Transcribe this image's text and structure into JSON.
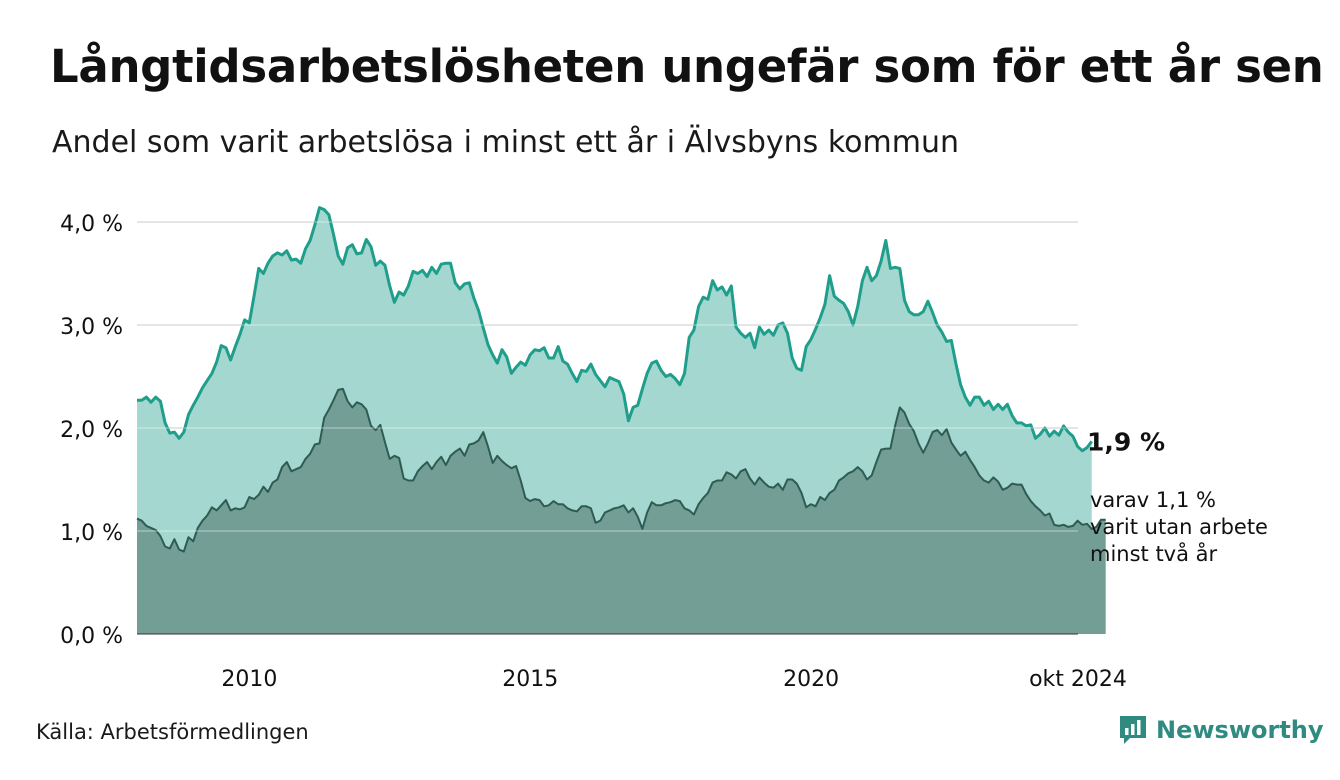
{
  "title": "Långtidsarbetslösheten ungefär som för ett år sen",
  "subtitle": "Andel som varit arbetslösa i minst ett år i Älvsbyns kommun",
  "source": "Källa: Arbetsförmedlingen",
  "brand": {
    "name": "Newsworthy",
    "icon": "newsworthy-logo-icon"
  },
  "colors": {
    "series1_line": "#1f9e8c",
    "series1_fill": "#a4d7cf",
    "series2_line": "#2e5c52",
    "series2_fill": "#739e95",
    "grid": "#dddddd",
    "brand": "#2f8b80"
  },
  "chart_data": {
    "type": "area",
    "title": "Långtidsarbetslösheten ungefär som för ett år sen",
    "subtitle": "Andel som varit arbetslösa i minst ett år i Älvsbyns kommun",
    "xlabel": "",
    "ylabel": "",
    "x_start": 2008.0,
    "x_step": 0.0833,
    "x_range": [
      2008.0,
      2024.75
    ],
    "x_ticks": [
      {
        "value": 2010,
        "label": "2010"
      },
      {
        "value": 2015,
        "label": "2015"
      },
      {
        "value": 2020,
        "label": "2020"
      },
      {
        "value": 2024.75,
        "label": "okt 2024"
      }
    ],
    "ylim": [
      0,
      4.2
    ],
    "y_ticks": [
      {
        "value": 0,
        "label": "0,0 %"
      },
      {
        "value": 1,
        "label": "1,0 %"
      },
      {
        "value": 2,
        "label": "2,0 %"
      },
      {
        "value": 3,
        "label": "3,0 %"
      },
      {
        "value": 4,
        "label": "4,0 %"
      }
    ],
    "grid": true,
    "series": [
      {
        "name": "Arbetslösa minst ett år",
        "values": [
          2.27,
          2.27,
          2.3,
          2.25,
          2.3,
          2.26,
          2.05,
          1.95,
          1.96,
          1.9,
          1.96,
          2.13,
          2.22,
          2.3,
          2.39,
          2.46,
          2.53,
          2.64,
          2.8,
          2.78,
          2.66,
          2.79,
          2.91,
          3.05,
          3.02,
          3.28,
          3.55,
          3.5,
          3.6,
          3.67,
          3.7,
          3.68,
          3.72,
          3.63,
          3.64,
          3.6,
          3.74,
          3.82,
          3.97,
          4.14,
          4.12,
          4.07,
          3.88,
          3.67,
          3.59,
          3.75,
          3.78,
          3.69,
          3.7,
          3.83,
          3.76,
          3.58,
          3.62,
          3.58,
          3.38,
          3.22,
          3.32,
          3.29,
          3.38,
          3.52,
          3.5,
          3.53,
          3.47,
          3.56,
          3.5,
          3.59,
          3.6,
          3.6,
          3.41,
          3.35,
          3.4,
          3.41,
          3.26,
          3.14,
          2.97,
          2.81,
          2.71,
          2.63,
          2.76,
          2.69,
          2.53,
          2.59,
          2.64,
          2.61,
          2.71,
          2.76,
          2.75,
          2.78,
          2.68,
          2.68,
          2.79,
          2.65,
          2.62,
          2.53,
          2.45,
          2.56,
          2.55,
          2.62,
          2.52,
          2.46,
          2.4,
          2.49,
          2.47,
          2.45,
          2.33,
          2.07,
          2.2,
          2.22,
          2.38,
          2.53,
          2.63,
          2.65,
          2.56,
          2.5,
          2.52,
          2.48,
          2.42,
          2.53,
          2.88,
          2.95,
          3.18,
          3.27,
          3.25,
          3.43,
          3.34,
          3.37,
          3.29,
          3.38,
          2.98,
          2.92,
          2.88,
          2.92,
          2.78,
          2.98,
          2.91,
          2.95,
          2.9,
          3.0,
          3.02,
          2.92,
          2.68,
          2.58,
          2.56,
          2.79,
          2.86,
          2.96,
          3.07,
          3.2,
          3.48,
          3.28,
          3.24,
          3.21,
          3.13,
          3.0,
          3.18,
          3.43,
          3.56,
          3.43,
          3.48,
          3.62,
          3.82,
          3.55,
          3.56,
          3.55,
          3.24,
          3.13,
          3.1,
          3.1,
          3.13,
          3.23,
          3.12,
          3.0,
          2.93,
          2.84,
          2.85,
          2.62,
          2.42,
          2.3,
          2.22,
          2.3,
          2.3,
          2.22,
          2.26,
          2.18,
          2.23,
          2.18,
          2.23,
          2.12,
          2.05,
          2.05,
          2.02,
          2.03,
          1.9,
          1.94,
          2.0,
          1.92,
          1.97,
          1.93,
          2.02,
          1.96,
          1.92,
          1.82,
          1.78,
          1.81,
          1.87
        ]
      },
      {
        "name": "varav utan arbete minst två år",
        "values": [
          1.12,
          1.1,
          1.05,
          1.03,
          1.01,
          0.95,
          0.85,
          0.83,
          0.92,
          0.82,
          0.8,
          0.94,
          0.9,
          1.03,
          1.1,
          1.15,
          1.23,
          1.2,
          1.25,
          1.3,
          1.2,
          1.22,
          1.21,
          1.23,
          1.33,
          1.31,
          1.35,
          1.43,
          1.38,
          1.47,
          1.5,
          1.62,
          1.67,
          1.58,
          1.6,
          1.62,
          1.7,
          1.75,
          1.84,
          1.85,
          2.1,
          2.18,
          2.27,
          2.37,
          2.38,
          2.26,
          2.2,
          2.25,
          2.23,
          2.18,
          2.02,
          1.98,
          2.03,
          1.86,
          1.7,
          1.73,
          1.71,
          1.51,
          1.49,
          1.49,
          1.58,
          1.63,
          1.67,
          1.6,
          1.67,
          1.72,
          1.64,
          1.73,
          1.77,
          1.8,
          1.73,
          1.84,
          1.85,
          1.88,
          1.96,
          1.82,
          1.66,
          1.73,
          1.68,
          1.64,
          1.61,
          1.63,
          1.49,
          1.32,
          1.29,
          1.31,
          1.3,
          1.24,
          1.25,
          1.29,
          1.26,
          1.26,
          1.22,
          1.2,
          1.19,
          1.24,
          1.24,
          1.22,
          1.08,
          1.1,
          1.18,
          1.2,
          1.22,
          1.23,
          1.25,
          1.18,
          1.22,
          1.14,
          1.02,
          1.18,
          1.28,
          1.25,
          1.25,
          1.27,
          1.28,
          1.3,
          1.29,
          1.22,
          1.2,
          1.16,
          1.26,
          1.32,
          1.37,
          1.47,
          1.49,
          1.49,
          1.57,
          1.55,
          1.51,
          1.58,
          1.6,
          1.51,
          1.45,
          1.52,
          1.47,
          1.43,
          1.42,
          1.46,
          1.4,
          1.5,
          1.5,
          1.46,
          1.37,
          1.23,
          1.26,
          1.24,
          1.33,
          1.3,
          1.37,
          1.4,
          1.49,
          1.52,
          1.56,
          1.58,
          1.62,
          1.58,
          1.5,
          1.54,
          1.67,
          1.79,
          1.8,
          1.8,
          2.02,
          2.2,
          2.15,
          2.04,
          1.97,
          1.85,
          1.76,
          1.85,
          1.96,
          1.98,
          1.93,
          1.99,
          1.86,
          1.79,
          1.73,
          1.77,
          1.69,
          1.62,
          1.54,
          1.49,
          1.47,
          1.52,
          1.48,
          1.4,
          1.42,
          1.46,
          1.45,
          1.45,
          1.36,
          1.29,
          1.24,
          1.2,
          1.15,
          1.17,
          1.06,
          1.05,
          1.06,
          1.04,
          1.05,
          1.1,
          1.06,
          1.07,
          1.02,
          1.04,
          1.11,
          1.11
        ]
      }
    ],
    "annotations": {
      "last_value": "1,9 %",
      "secondary_lines": [
        "varav 1,1 %",
        "varit utan arbete",
        "minst två år"
      ]
    }
  }
}
